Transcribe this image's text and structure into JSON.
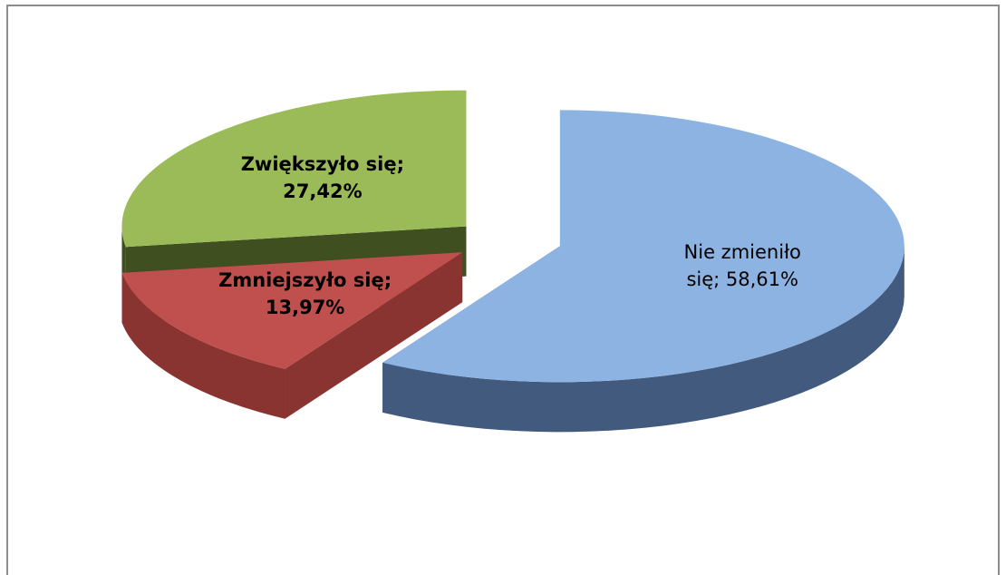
{
  "chart_data": {
    "type": "pie",
    "values": [
      58.61,
      13.97,
      27.42
    ],
    "value_labels": [
      "Nie zmieniło się; 58,61%",
      "Zmniejszyło się; 13,97%",
      "Zwiększyło się; 27,42%"
    ],
    "colors": [
      "#8db3e2",
      "#c0504d",
      "#9bbb59"
    ],
    "side_colors": [
      "#415a7e",
      "#8a3432",
      "#3f4f1f"
    ]
  }
}
